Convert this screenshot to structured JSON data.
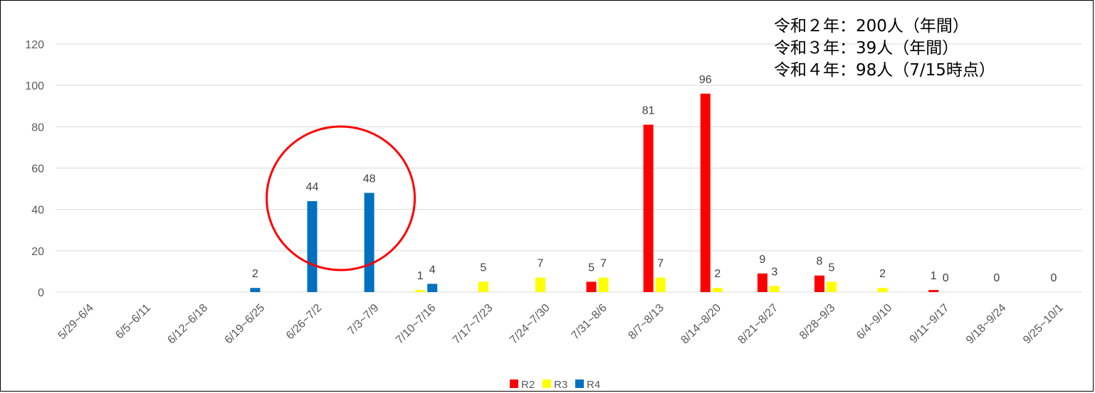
{
  "annotation": {
    "lines": [
      "令和２年：200人（年間）",
      "令和３年：39人（年間）",
      "令和４年：98人（7/15時点）"
    ]
  },
  "chart_data": {
    "type": "bar",
    "categories": [
      "5/29~6/4",
      "6/5~6/11",
      "6/12~6/18",
      "6/19~6/25",
      "6/26~7/2",
      "7/3~7/9",
      "7/10~7/16",
      "7/17~7/23",
      "7/24~7/30",
      "7/31~8/6",
      "8/7~8/13",
      "8/14~8/20",
      "8/21~8/27",
      "8/28~9/3",
      "6/4~9/10",
      "9/11~9/17",
      "9/18~9/24",
      "9/25~10/1"
    ],
    "series": [
      {
        "name": "R2",
        "color": "#FF0000",
        "values": [
          null,
          null,
          null,
          null,
          null,
          null,
          null,
          null,
          null,
          5,
          81,
          96,
          9,
          8,
          null,
          1,
          null,
          null
        ]
      },
      {
        "name": "R3",
        "color": "#FFFF00",
        "values": [
          null,
          null,
          null,
          null,
          null,
          null,
          1,
          5,
          7,
          7,
          7,
          2,
          3,
          5,
          2,
          0,
          0,
          0
        ]
      },
      {
        "name": "R4",
        "color": "#0070C0",
        "values": [
          null,
          null,
          null,
          2,
          44,
          48,
          4,
          null,
          null,
          null,
          null,
          null,
          null,
          null,
          null,
          null,
          null,
          null
        ]
      }
    ],
    "yticks": [
      0,
      20,
      40,
      60,
      80,
      100,
      120
    ],
    "ylim": [
      0,
      120
    ],
    "title": "",
    "xlabel": "",
    "ylabel": "",
    "grid": true,
    "legend": "bottom",
    "highlight": {
      "shape": "circle",
      "color": "#FF0000",
      "categories": [
        "6/26~7/2",
        "7/3~7/9"
      ]
    }
  }
}
